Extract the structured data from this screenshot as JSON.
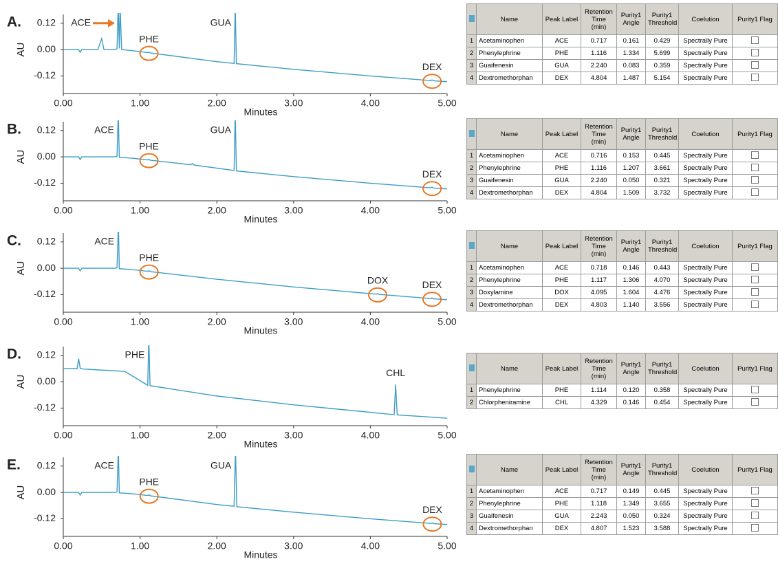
{
  "chart_data": [
    {
      "type": "line",
      "panel_label": "A.",
      "xlabel": "Minutes",
      "ylabel": "AU",
      "xlim": [
        0,
        5
      ],
      "ylim": [
        -0.2,
        0.16
      ],
      "xticks": [
        {
          "value": 0,
          "label": "0.00"
        },
        {
          "value": 1,
          "label": "1.00"
        },
        {
          "value": 2,
          "label": "2.00"
        },
        {
          "value": 3,
          "label": "3.00"
        },
        {
          "value": 4,
          "label": "4.00"
        },
        {
          "value": 5,
          "label": "5.00"
        }
      ],
      "yticks": [
        {
          "value": 0.12,
          "label": "0.12"
        },
        {
          "value": 0,
          "label": "0.00"
        },
        {
          "value": -0.12,
          "label": "-0.12"
        }
      ],
      "color": "#3b9cc6",
      "x": [
        0,
        0.2,
        0.22,
        0.24,
        0.45,
        0.5,
        0.53,
        0.68,
        0.7,
        0.715,
        0.73,
        0.74,
        0.76,
        0.9,
        1.1,
        1.116,
        1.13,
        2.0,
        2.225,
        2.24,
        2.255,
        3.0,
        4.0,
        4.79,
        4.804,
        4.82,
        5.0
      ],
      "values": [
        0,
        0,
        -0.012,
        0,
        0,
        0.05,
        0,
        0,
        0.005,
        0.2,
        0.005,
        0.2,
        0,
        -0.005,
        -0.014,
        -0.011,
        -0.015,
        -0.055,
        -0.063,
        0.2,
        -0.064,
        -0.09,
        -0.12,
        -0.141,
        -0.138,
        -0.142,
        -0.146
      ],
      "annotations": [
        {
          "text": "ACE",
          "arrow": true
        },
        {
          "text": "PHE",
          "circled": true
        },
        {
          "text": "GUA"
        },
        {
          "text": "DEX",
          "circled": true
        }
      ]
    },
    {
      "type": "line",
      "panel_label": "B.",
      "xlabel": "Minutes",
      "ylabel": "AU",
      "xlim": [
        0,
        5
      ],
      "ylim": [
        -0.2,
        0.16
      ],
      "xticks": [
        {
          "value": 0,
          "label": "0.00"
        },
        {
          "value": 1,
          "label": "1.00"
        },
        {
          "value": 2,
          "label": "2.00"
        },
        {
          "value": 3,
          "label": "3.00"
        },
        {
          "value": 4,
          "label": "4.00"
        },
        {
          "value": 5,
          "label": "5.00"
        }
      ],
      "yticks": [
        {
          "value": 0.12,
          "label": "0.12"
        },
        {
          "value": 0,
          "label": "0.00"
        },
        {
          "value": -0.12,
          "label": "-0.12"
        }
      ],
      "color": "#3b9cc6",
      "x": [
        0,
        0.2,
        0.22,
        0.24,
        0.68,
        0.7,
        0.716,
        0.73,
        0.9,
        1.1,
        1.116,
        1.13,
        1.66,
        1.68,
        1.7,
        2.225,
        2.24,
        2.255,
        3.0,
        4.0,
        4.79,
        4.804,
        4.82,
        5.0
      ],
      "values": [
        0,
        0,
        -0.012,
        0,
        0,
        0.003,
        0.2,
        -0.002,
        -0.006,
        -0.014,
        -0.011,
        -0.015,
        -0.036,
        -0.03,
        -0.037,
        -0.062,
        0.2,
        -0.064,
        -0.09,
        -0.12,
        -0.141,
        -0.138,
        -0.142,
        -0.146
      ],
      "annotations": [
        {
          "text": "ACE"
        },
        {
          "text": "PHE",
          "circled": true
        },
        {
          "text": "GUA"
        },
        {
          "text": "DEX",
          "circled": true
        }
      ]
    },
    {
      "type": "line",
      "panel_label": "C.",
      "xlabel": "Minutes",
      "ylabel": "AU",
      "xlim": [
        0,
        5
      ],
      "ylim": [
        -0.2,
        0.16
      ],
      "xticks": [
        {
          "value": 0,
          "label": "0.00"
        },
        {
          "value": 1,
          "label": "1.00"
        },
        {
          "value": 2,
          "label": "2.00"
        },
        {
          "value": 3,
          "label": "3.00"
        },
        {
          "value": 4,
          "label": "4.00"
        },
        {
          "value": 5,
          "label": "5.00"
        }
      ],
      "yticks": [
        {
          "value": 0.12,
          "label": "0.12"
        },
        {
          "value": 0,
          "label": "0.00"
        },
        {
          "value": -0.12,
          "label": "-0.12"
        }
      ],
      "color": "#3b9cc6",
      "x": [
        0,
        0.2,
        0.22,
        0.24,
        0.68,
        0.7,
        0.718,
        0.73,
        0.9,
        1.1,
        1.117,
        1.13,
        2.0,
        3.0,
        4.08,
        4.095,
        4.11,
        4.79,
        4.803,
        4.82,
        5.0
      ],
      "values": [
        0,
        0,
        -0.012,
        0,
        0,
        0.003,
        0.2,
        -0.002,
        -0.006,
        -0.014,
        -0.011,
        -0.015,
        -0.05,
        -0.085,
        -0.118,
        -0.115,
        -0.119,
        -0.138,
        -0.135,
        -0.139,
        -0.143
      ],
      "annotations": [
        {
          "text": "ACE"
        },
        {
          "text": "PHE",
          "circled": true
        },
        {
          "text": "DOX",
          "circled": true
        },
        {
          "text": "DEX",
          "circled": true
        }
      ]
    },
    {
      "type": "line",
      "panel_label": "D.",
      "xlabel": "Minutes",
      "ylabel": "AU",
      "xlim": [
        0,
        5
      ],
      "ylim": [
        -0.2,
        0.16
      ],
      "xticks": [
        {
          "value": 0,
          "label": "0.00"
        },
        {
          "value": 1,
          "label": "1.00"
        },
        {
          "value": 2,
          "label": "2.00"
        },
        {
          "value": 3,
          "label": "3.00"
        },
        {
          "value": 4,
          "label": "4.00"
        },
        {
          "value": 5,
          "label": "5.00"
        }
      ],
      "yticks": [
        {
          "value": 0.12,
          "label": "0.12"
        },
        {
          "value": 0,
          "label": "0.00"
        },
        {
          "value": -0.12,
          "label": "-0.12"
        }
      ],
      "color": "#3b9cc6",
      "x": [
        0,
        0.18,
        0.2,
        0.22,
        0.25,
        0.8,
        1.1,
        1.114,
        1.13,
        2.0,
        3.0,
        4.31,
        4.329,
        4.35,
        5.0
      ],
      "values": [
        0.06,
        0.059,
        0.105,
        0.062,
        0.058,
        0.047,
        -0.016,
        0.2,
        -0.018,
        -0.065,
        -0.105,
        -0.15,
        -0.013,
        -0.151,
        -0.166
      ],
      "annotations": [
        {
          "text": "PHE"
        },
        {
          "text": "CHL"
        }
      ]
    },
    {
      "type": "line",
      "panel_label": "E.",
      "xlabel": "Minutes",
      "ylabel": "AU",
      "xlim": [
        0,
        5
      ],
      "ylim": [
        -0.2,
        0.16
      ],
      "xticks": [
        {
          "value": 0,
          "label": "0.00"
        },
        {
          "value": 1,
          "label": "1.00"
        },
        {
          "value": 2,
          "label": "2.00"
        },
        {
          "value": 3,
          "label": "3.00"
        },
        {
          "value": 4,
          "label": "4.00"
        },
        {
          "value": 5,
          "label": "5.00"
        }
      ],
      "yticks": [
        {
          "value": 0.12,
          "label": "0.12"
        },
        {
          "value": 0,
          "label": "0.00"
        },
        {
          "value": -0.12,
          "label": "-0.12"
        }
      ],
      "color": "#3b9cc6",
      "x": [
        0,
        0.2,
        0.22,
        0.24,
        0.68,
        0.7,
        0.717,
        0.73,
        0.9,
        1.1,
        1.118,
        1.13,
        2.0,
        2.225,
        2.243,
        2.26,
        3.0,
        4.0,
        4.79,
        4.807,
        4.82,
        5.0
      ],
      "values": [
        0,
        0,
        -0.012,
        0,
        0,
        0.003,
        0.2,
        -0.002,
        -0.006,
        -0.014,
        -0.011,
        -0.015,
        -0.055,
        -0.063,
        0.2,
        -0.065,
        -0.09,
        -0.12,
        -0.141,
        -0.138,
        -0.142,
        -0.146
      ],
      "annotations": [
        {
          "text": "ACE"
        },
        {
          "text": "PHE",
          "circled": true
        },
        {
          "text": "GUA"
        },
        {
          "text": "DEX",
          "circled": true
        }
      ]
    }
  ],
  "tables": [
    {
      "columns": [
        "Name",
        "Peak Label",
        "Retention Time (min)",
        "Purity1 Angle",
        "Purity1 Threshold",
        "Coelution",
        "Purity1 Flag"
      ],
      "rows": [
        [
          "1",
          "Acetaminophen",
          "ACE",
          "0.717",
          "0.161",
          "0.429",
          "Spectrally Pure"
        ],
        [
          "2",
          "Phenylephrine",
          "PHE",
          "1.116",
          "1.334",
          "5.699",
          "Spectrally Pure"
        ],
        [
          "3",
          "Guaifenesin",
          "GUA",
          "2.240",
          "0.083",
          "0.359",
          "Spectrally Pure"
        ],
        [
          "4",
          "Dextromethorphan",
          "DEX",
          "4.804",
          "1.487",
          "5.154",
          "Spectrally Pure"
        ]
      ]
    },
    {
      "columns": [
        "Name",
        "Peak Label",
        "Retention Time (min)",
        "Purity1 Angle",
        "Purity1 Threshold",
        "Coelution",
        "Purity1 Flag"
      ],
      "rows": [
        [
          "1",
          "Acetaminophen",
          "ACE",
          "0.716",
          "0.153",
          "0.445",
          "Spectrally Pure"
        ],
        [
          "2",
          "Phenylephrine",
          "PHE",
          "1.116",
          "1.207",
          "3.661",
          "Spectrally Pure"
        ],
        [
          "3",
          "Guaifenesin",
          "GUA",
          "2.240",
          "0.050",
          "0.321",
          "Spectrally Pure"
        ],
        [
          "4",
          "Dextromethorphan",
          "DEX",
          "4.804",
          "1.509",
          "3.732",
          "Spectrally Pure"
        ]
      ]
    },
    {
      "columns": [
        "Name",
        "Peak Label",
        "Retention Time (min)",
        "Purity1 Angle",
        "Purity1 Threshold",
        "Coelution",
        "Purity1 Flag"
      ],
      "rows": [
        [
          "1",
          "Acetaminophen",
          "ACE",
          "0.718",
          "0.146",
          "0.443",
          "Spectrally Pure"
        ],
        [
          "2",
          "Phenylephrine",
          "PHE",
          "1.117",
          "1.306",
          "4.070",
          "Spectrally Pure"
        ],
        [
          "3",
          "Doxylamine",
          "DOX",
          "4.095",
          "1.604",
          "4.476",
          "Spectrally Pure"
        ],
        [
          "4",
          "Dextromethorphan",
          "DEX",
          "4.803",
          "1.140",
          "3.556",
          "Spectrally Pure"
        ]
      ]
    },
    {
      "columns": [
        "Name",
        "Peak Label",
        "Retention Time (min)",
        "Purity1 Angle",
        "Purity1 Threshold",
        "Coelution",
        "Purity1 Flag"
      ],
      "rows": [
        [
          "1",
          "Phenylephrine",
          "PHE",
          "1.114",
          "0.120",
          "0.358",
          "Spectrally Pure"
        ],
        [
          "2",
          "Chlorpheniramine",
          "CHL",
          "4.329",
          "0.146",
          "0.454",
          "Spectrally Pure"
        ]
      ]
    },
    {
      "columns": [
        "Name",
        "Peak Label",
        "Retention Time (min)",
        "Purity1 Angle",
        "Purity1 Threshold",
        "Coelution",
        "Purity1 Flag"
      ],
      "rows": [
        [
          "1",
          "Acetaminophen",
          "ACE",
          "0.717",
          "0.149",
          "0.445",
          "Spectrally Pure"
        ],
        [
          "2",
          "Phenylephrine",
          "PHE",
          "1.118",
          "1.349",
          "3.655",
          "Spectrally Pure"
        ],
        [
          "3",
          "Guaifenesin",
          "GUA",
          "2.243",
          "0.050",
          "0.324",
          "Spectrally Pure"
        ],
        [
          "4",
          "Dextromethorphan",
          "DEX",
          "4.807",
          "1.523",
          "3.588",
          "Spectrally Pure"
        ]
      ]
    }
  ]
}
